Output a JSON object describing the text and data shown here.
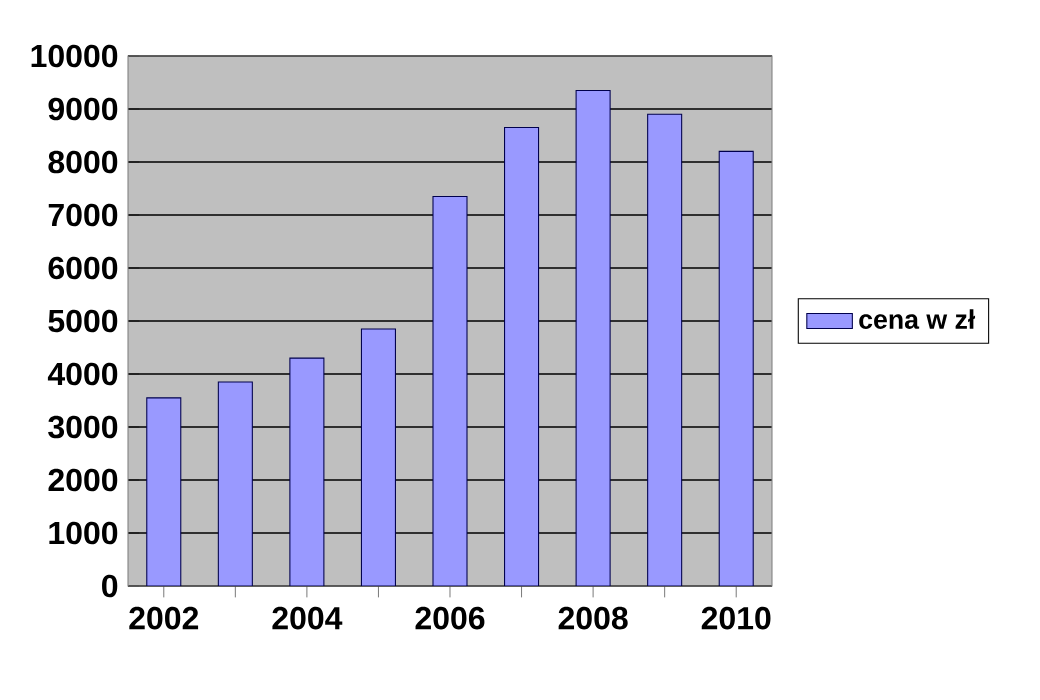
{
  "chart_data": {
    "type": "bar",
    "categories": [
      "2002",
      null,
      "2004",
      null,
      "2006",
      null,
      "2008",
      null,
      "2010"
    ],
    "series": [
      {
        "name": "cena w zł",
        "color": "#9999ff",
        "values": [
          3550,
          3850,
          4300,
          4850,
          7350,
          8650,
          9350,
          8900,
          8200
        ]
      }
    ],
    "ylim": [
      0,
      10000
    ],
    "yticks": [
      0,
      1000,
      2000,
      3000,
      4000,
      5000,
      6000,
      7000,
      8000,
      9000,
      10000
    ],
    "grid": "y",
    "legend": "right"
  }
}
